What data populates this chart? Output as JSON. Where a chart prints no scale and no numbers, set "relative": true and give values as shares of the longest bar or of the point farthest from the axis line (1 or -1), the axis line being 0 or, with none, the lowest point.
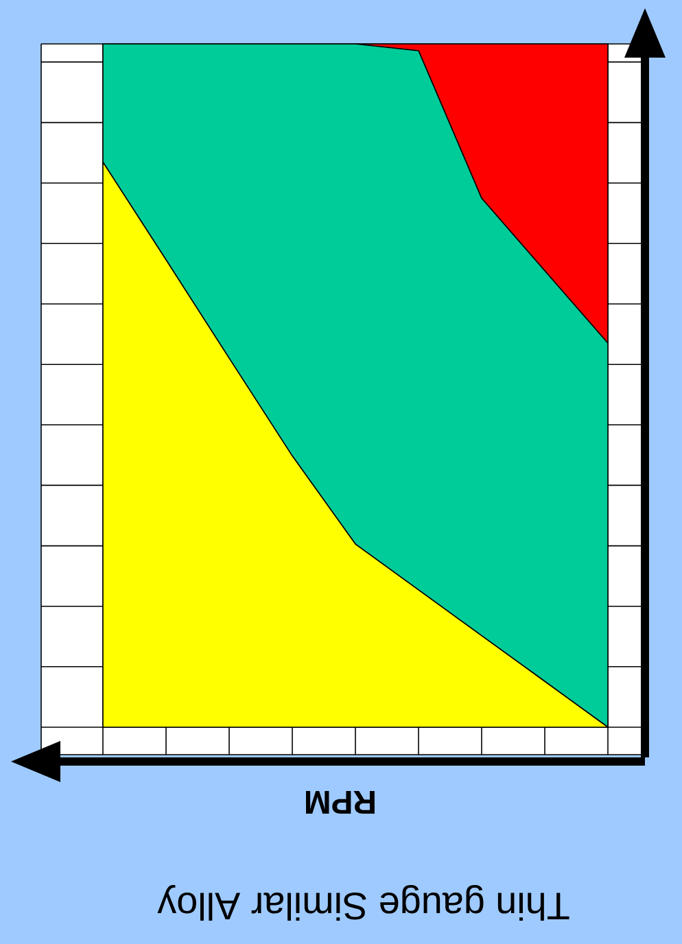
{
  "chart_data": {
    "type": "area",
    "title": "Thin gauge Similar Alloy",
    "xlabel": "RPM",
    "relative": true,
    "stacked": true,
    "grid": true,
    "categories": [
      null,
      null,
      null,
      null,
      null,
      null,
      null,
      null,
      null
    ],
    "series": [
      {
        "color": "#ffff00",
        "values": [
          0.827,
          0.684,
          0.54,
          0.397,
          0.268,
          0.201,
          0.134,
          0.067,
          0
        ]
      },
      {
        "color": "#00cc99",
        "values": [
          0.173,
          0.316,
          0.46,
          0.603,
          0.732,
          0.789,
          0.64,
          0.601,
          0.562
        ]
      },
      {
        "color": "#ff0000",
        "values": [
          0,
          0,
          0,
          0,
          0,
          0.01,
          0.226,
          0.332,
          0.438
        ]
      }
    ]
  }
}
